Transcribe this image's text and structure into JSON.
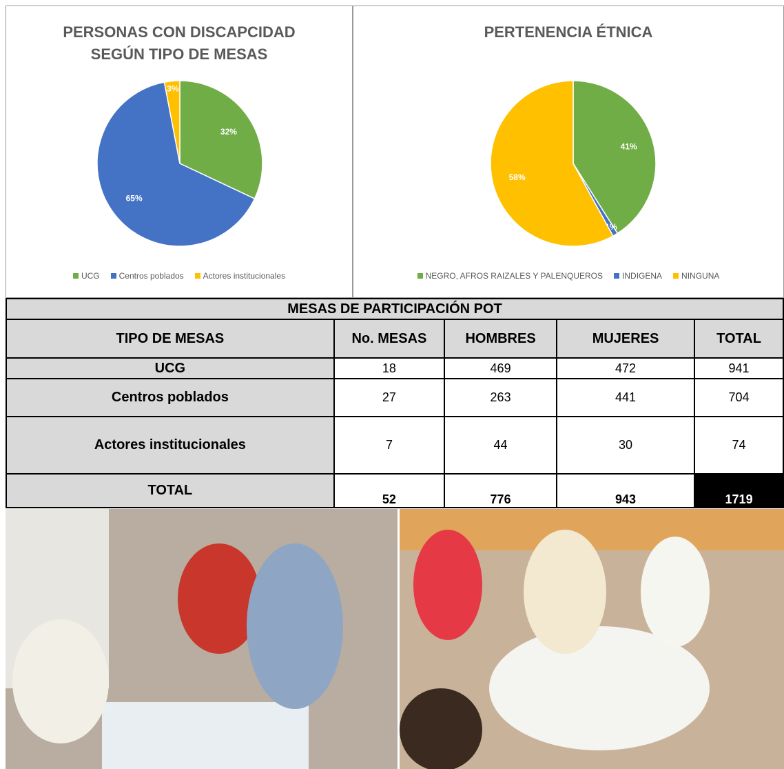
{
  "chart_data": [
    {
      "type": "pie",
      "title": "PERSONAS CON DISCAPCIDAD SEGÚN TIPO DE MESAS",
      "categories": [
        "UCG",
        "Centros poblados",
        "Actores institucionales"
      ],
      "values": [
        32,
        65,
        3
      ],
      "value_labels": [
        "32%",
        "65%",
        "3%"
      ],
      "colors": [
        "#70ad47",
        "#4472c4",
        "#ffc000"
      ],
      "legend": "bottom"
    },
    {
      "type": "pie",
      "title": "PERTENENCIA ÉTNICA",
      "categories": [
        "NEGRO, AFROS RAIZALES Y PALENQUEROS",
        "INDIGENA",
        "NINGUNA"
      ],
      "values": [
        41,
        1,
        58
      ],
      "value_labels": [
        "41%",
        "1%",
        "58%"
      ],
      "colors": [
        "#70ad47",
        "#4472c4",
        "#ffc000"
      ],
      "legend": "bottom"
    }
  ],
  "table": {
    "title": "MESAS DE PARTICIPACIÓN POT",
    "headers": [
      "TIPO DE MESAS",
      "No. MESAS",
      "HOMBRES",
      "MUJERES",
      "TOTAL"
    ],
    "rows": [
      [
        "UCG",
        18,
        469,
        472,
        941
      ],
      [
        "Centros poblados",
        27,
        263,
        441,
        704
      ],
      [
        "Actores institucionales",
        7,
        44,
        30,
        74
      ],
      [
        "TOTAL",
        52,
        776,
        943,
        1719
      ]
    ]
  }
}
